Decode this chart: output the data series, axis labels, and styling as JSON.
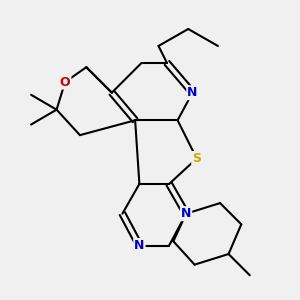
{
  "background_color": "#f0f0f0",
  "atom_colors": {
    "C": "#000000",
    "N": "#0000cc",
    "O": "#cc0000",
    "S": "#ccaa00"
  },
  "bond_color": "#000000",
  "bond_width": 1.5,
  "figsize": [
    3.0,
    3.0
  ],
  "dpi": 100
}
